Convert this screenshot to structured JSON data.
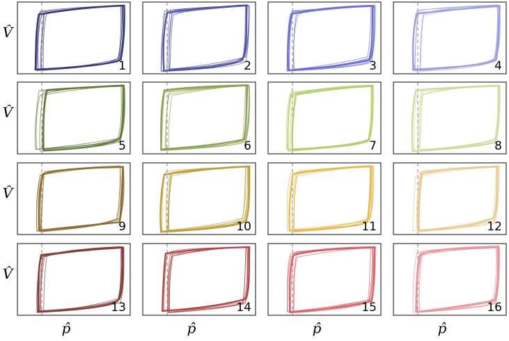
{
  "panels": [
    {
      "label": "1",
      "color": "#393b79"
    },
    {
      "label": "2",
      "color": "#5254a3"
    },
    {
      "label": "3",
      "color": "#6b6ecf"
    },
    {
      "label": "4",
      "color": "#9c9ede"
    },
    {
      "label": "5",
      "color": "#637939"
    },
    {
      "label": "6",
      "color": "#8ca252"
    },
    {
      "label": "7",
      "color": "#b5cf6b"
    },
    {
      "label": "8",
      "color": "#cedb9c"
    },
    {
      "label": "9",
      "color": "#8c6d31"
    },
    {
      "label": "10",
      "color": "#bd9e39"
    },
    {
      "label": "11",
      "color": "#e7ba52"
    },
    {
      "label": "12",
      "color": "#e7cb94"
    },
    {
      "label": "13",
      "color": "#843c39"
    },
    {
      "label": "14",
      "color": "#ad494a"
    },
    {
      "label": "15",
      "color": "#d6616b"
    },
    {
      "label": "16",
      "color": "#e7969c"
    }
  ],
  "y_label": "V̂",
  "x_label": "p̂"
}
